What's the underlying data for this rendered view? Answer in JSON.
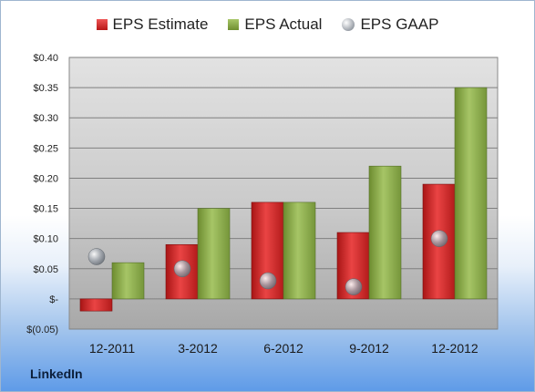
{
  "chart_data": {
    "type": "bar",
    "categories": [
      "12-2011",
      "3-2012",
      "6-2012",
      "9-2012",
      "12-2012"
    ],
    "series": [
      {
        "name": "EPS Estimate",
        "kind": "bar",
        "color": "#c9201f",
        "values": [
          -0.02,
          0.09,
          0.16,
          0.11,
          0.19
        ]
      },
      {
        "name": "EPS Actual",
        "kind": "bar",
        "color": "#8aaa4a",
        "values": [
          0.06,
          0.15,
          0.16,
          0.22,
          0.35
        ]
      },
      {
        "name": "EPS GAAP",
        "kind": "marker",
        "color": "#9aa0a8",
        "values": [
          0.07,
          0.05,
          0.03,
          0.02,
          0.1
        ]
      }
    ],
    "y_ticks": [
      {
        "value": 0.4,
        "label": "$0.40"
      },
      {
        "value": 0.35,
        "label": "$0.35"
      },
      {
        "value": 0.3,
        "label": "$0.30"
      },
      {
        "value": 0.25,
        "label": "$0.25"
      },
      {
        "value": 0.2,
        "label": "$0.20"
      },
      {
        "value": 0.15,
        "label": "$0.15"
      },
      {
        "value": 0.1,
        "label": "$0.10"
      },
      {
        "value": 0.05,
        "label": "$0.05"
      },
      {
        "value": 0.0,
        "label": "$-"
      },
      {
        "value": -0.05,
        "label": "$(0.05)"
      }
    ],
    "ylim": [
      -0.05,
      0.4
    ],
    "grid": true,
    "legend_position": "top"
  },
  "brand": "LinkedIn"
}
